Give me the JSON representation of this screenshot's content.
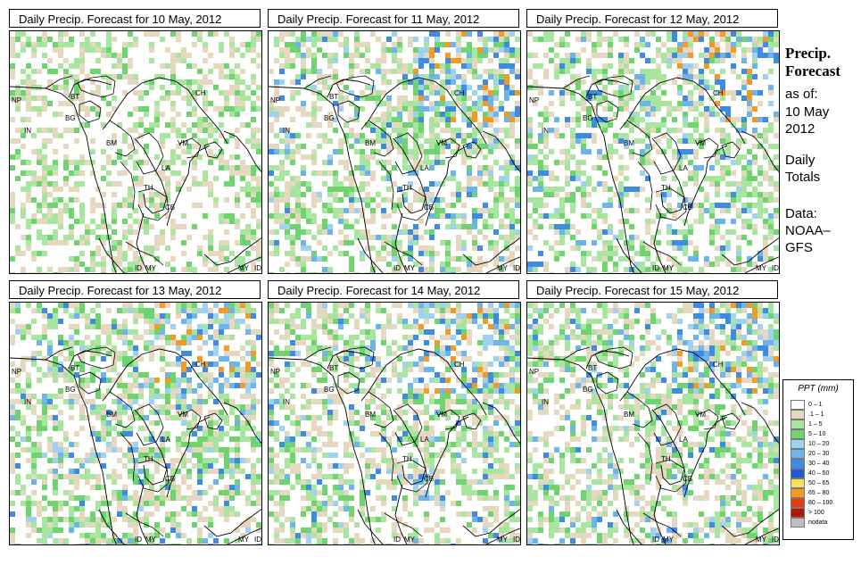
{
  "panels": [
    {
      "title": "Daily Precip. Forecast for  10 May, 2012",
      "seed": 11
    },
    {
      "title": "Daily Precip. Forecast for  11 May, 2012",
      "seed": 23
    },
    {
      "title": "Daily Precip. Forecast for  12 May, 2012",
      "seed": 37
    },
    {
      "title": "Daily Precip. Forecast for  13 May, 2012",
      "seed": 41
    },
    {
      "title": "Daily Precip. Forecast for  14 May, 2012",
      "seed": 53
    },
    {
      "title": "Daily Precip. Forecast for  15 May, 2012",
      "seed": 67
    }
  ],
  "country_labels": [
    "NP",
    "BT",
    "BG",
    "IN",
    "CH",
    "BM",
    "VM",
    "LA",
    "TH",
    "CB",
    "MY",
    "ID",
    "MY",
    "ID"
  ],
  "sidebar": {
    "title_line1": "Precip.",
    "title_line2": "Forecast",
    "asof": "as of:",
    "date_line1": "10 May",
    "date_line2": "2012",
    "daily_line1": "Daily",
    "daily_line2": "Totals",
    "data_line1": "Data:",
    "data_line2": "NOAA–",
    "data_line3": "GFS"
  },
  "legend": {
    "title": "PPT (mm)",
    "items": [
      {
        "label": "0 – 1",
        "color": "#ffffff"
      },
      {
        "label": ".1 – 1",
        "color": "#e6d7bf"
      },
      {
        "label": "1 – 5",
        "color": "#a8e6a0"
      },
      {
        "label": "5 – 10",
        "color": "#6ed46e"
      },
      {
        "label": "10 – 20",
        "color": "#9fd2f0"
      },
      {
        "label": "20 – 30",
        "color": "#6cb4ec"
      },
      {
        "label": "30 – 40",
        "color": "#3c8ce6"
      },
      {
        "label": "40 – 50",
        "color": "#1e5adc"
      },
      {
        "label": "50 – 65",
        "color": "#f5e15a"
      },
      {
        "label": "65 – 80",
        "color": "#f59a1e"
      },
      {
        "label": "80 – 100",
        "color": "#e63c14"
      },
      {
        "label": "> 100",
        "color": "#b4140a"
      },
      {
        "label": "nodata",
        "color": "#bebebe"
      }
    ]
  }
}
